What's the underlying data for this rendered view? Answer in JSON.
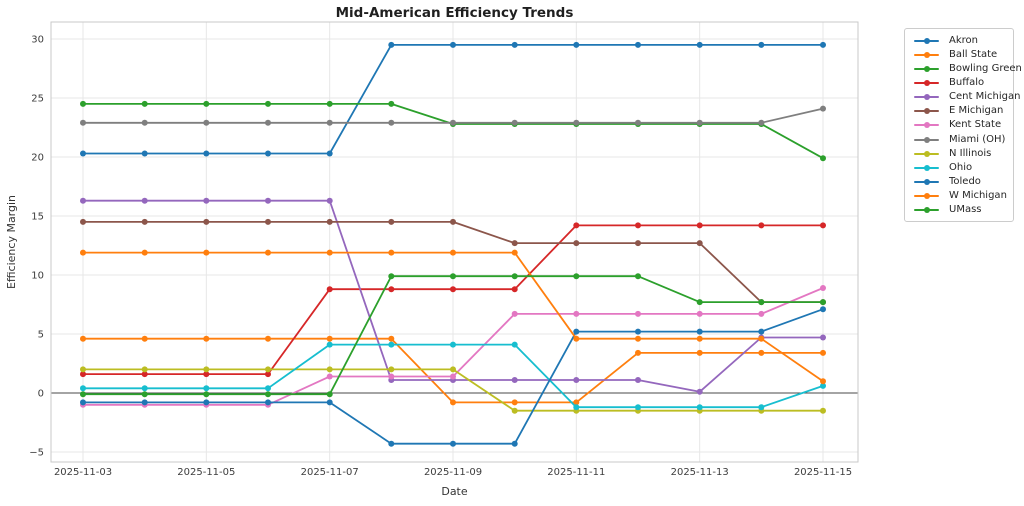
{
  "figure": {
    "title": "Mid-American Efficiency Trends",
    "x_axis_label": "Date",
    "y_axis_label": "Efficiency Margin"
  },
  "chart_data": {
    "type": "line",
    "title": "Mid-American Efficiency Trends",
    "xlabel": "Date",
    "ylabel": "Efficiency Margin",
    "grid": true,
    "zero_line": true,
    "legend_position": "outside upper right",
    "x": [
      "2025-11-03",
      "2025-11-04",
      "2025-11-05",
      "2025-11-06",
      "2025-11-07",
      "2025-11-08",
      "2025-11-09",
      "2025-11-10",
      "2025-11-11",
      "2025-11-12",
      "2025-11-13",
      "2025-11-14",
      "2025-11-15"
    ],
    "x_tick_labels": [
      "2025-11-03",
      "2025-11-05",
      "2025-11-07",
      "2025-11-09",
      "2025-11-11",
      "2025-11-13",
      "2025-11-15"
    ],
    "yticks": [
      -5,
      0,
      5,
      10,
      15,
      20,
      25,
      30
    ],
    "ylim": [
      -5.9,
      31.4
    ],
    "series": [
      {
        "name": "Akron",
        "color": "#1f77b4",
        "values": [
          20.3,
          20.3,
          20.3,
          20.3,
          20.3,
          29.5,
          29.5,
          29.5,
          29.5,
          29.5,
          29.5,
          29.5,
          29.5
        ]
      },
      {
        "name": "Ball State",
        "color": "#ff7f0e",
        "values": [
          4.6,
          4.6,
          4.6,
          4.6,
          4.6,
          4.6,
          -0.8,
          -0.8,
          -0.8,
          3.4,
          3.4,
          3.4,
          3.4
        ]
      },
      {
        "name": "Bowling Green",
        "color": "#2ca02c",
        "values": [
          24.5,
          24.5,
          24.5,
          24.5,
          24.5,
          24.5,
          22.8,
          22.8,
          22.8,
          22.8,
          22.8,
          22.8,
          19.9
        ]
      },
      {
        "name": "Buffalo",
        "color": "#d62728",
        "values": [
          1.6,
          1.6,
          1.6,
          1.6,
          8.8,
          8.8,
          8.8,
          8.8,
          14.2,
          14.2,
          14.2,
          14.2,
          14.2
        ]
      },
      {
        "name": "Cent Michigan",
        "color": "#9467bd",
        "values": [
          16.3,
          16.3,
          16.3,
          16.3,
          16.3,
          1.1,
          1.1,
          1.1,
          1.1,
          1.1,
          0.1,
          4.7,
          4.7
        ]
      },
      {
        "name": "E Michigan",
        "color": "#8c564b",
        "values": [
          14.5,
          14.5,
          14.5,
          14.5,
          14.5,
          14.5,
          14.5,
          12.7,
          12.7,
          12.7,
          12.7,
          7.7,
          7.7
        ]
      },
      {
        "name": "Kent State",
        "color": "#e377c2",
        "values": [
          -1.0,
          -1.0,
          -1.0,
          -1.0,
          1.4,
          1.4,
          1.4,
          6.7,
          6.7,
          6.7,
          6.7,
          6.7,
          8.9
        ]
      },
      {
        "name": "Miami (OH)",
        "color": "#7f7f7f",
        "values": [
          22.9,
          22.9,
          22.9,
          22.9,
          22.9,
          22.9,
          22.9,
          22.9,
          22.9,
          22.9,
          22.9,
          22.9,
          24.1
        ]
      },
      {
        "name": "N Illinois",
        "color": "#bcbd22",
        "values": [
          2.0,
          2.0,
          2.0,
          2.0,
          2.0,
          2.0,
          2.0,
          -1.5,
          -1.5,
          -1.5,
          -1.5,
          -1.5,
          -1.5
        ]
      },
      {
        "name": "Ohio",
        "color": "#17becf",
        "values": [
          0.4,
          0.4,
          0.4,
          0.4,
          4.1,
          4.1,
          4.1,
          4.1,
          -1.2,
          -1.2,
          -1.2,
          -1.2,
          0.6
        ]
      },
      {
        "name": "Toledo",
        "color": "#1f77b4",
        "values": [
          -0.8,
          -0.8,
          -0.8,
          -0.8,
          -0.8,
          -4.3,
          -4.3,
          -4.3,
          5.2,
          5.2,
          5.2,
          5.2,
          7.1
        ]
      },
      {
        "name": "W Michigan",
        "color": "#ff7f0e",
        "values": [
          11.9,
          11.9,
          11.9,
          11.9,
          11.9,
          11.9,
          11.9,
          11.9,
          4.6,
          4.6,
          4.6,
          4.6,
          1.0
        ]
      },
      {
        "name": "UMass",
        "color": "#2ca02c",
        "values": [
          -0.1,
          -0.1,
          -0.1,
          -0.1,
          -0.1,
          9.9,
          9.9,
          9.9,
          9.9,
          9.9,
          7.7,
          7.7,
          7.7
        ]
      }
    ],
    "style": {
      "grid_color": "#e7e7e7",
      "spine_color": "#c9c9c9",
      "zero_line_color": "#4a4a4a",
      "title_color": "#1f1f1f",
      "tick_color": "#3d3d3d",
      "axis_label_color": "#333333"
    }
  }
}
